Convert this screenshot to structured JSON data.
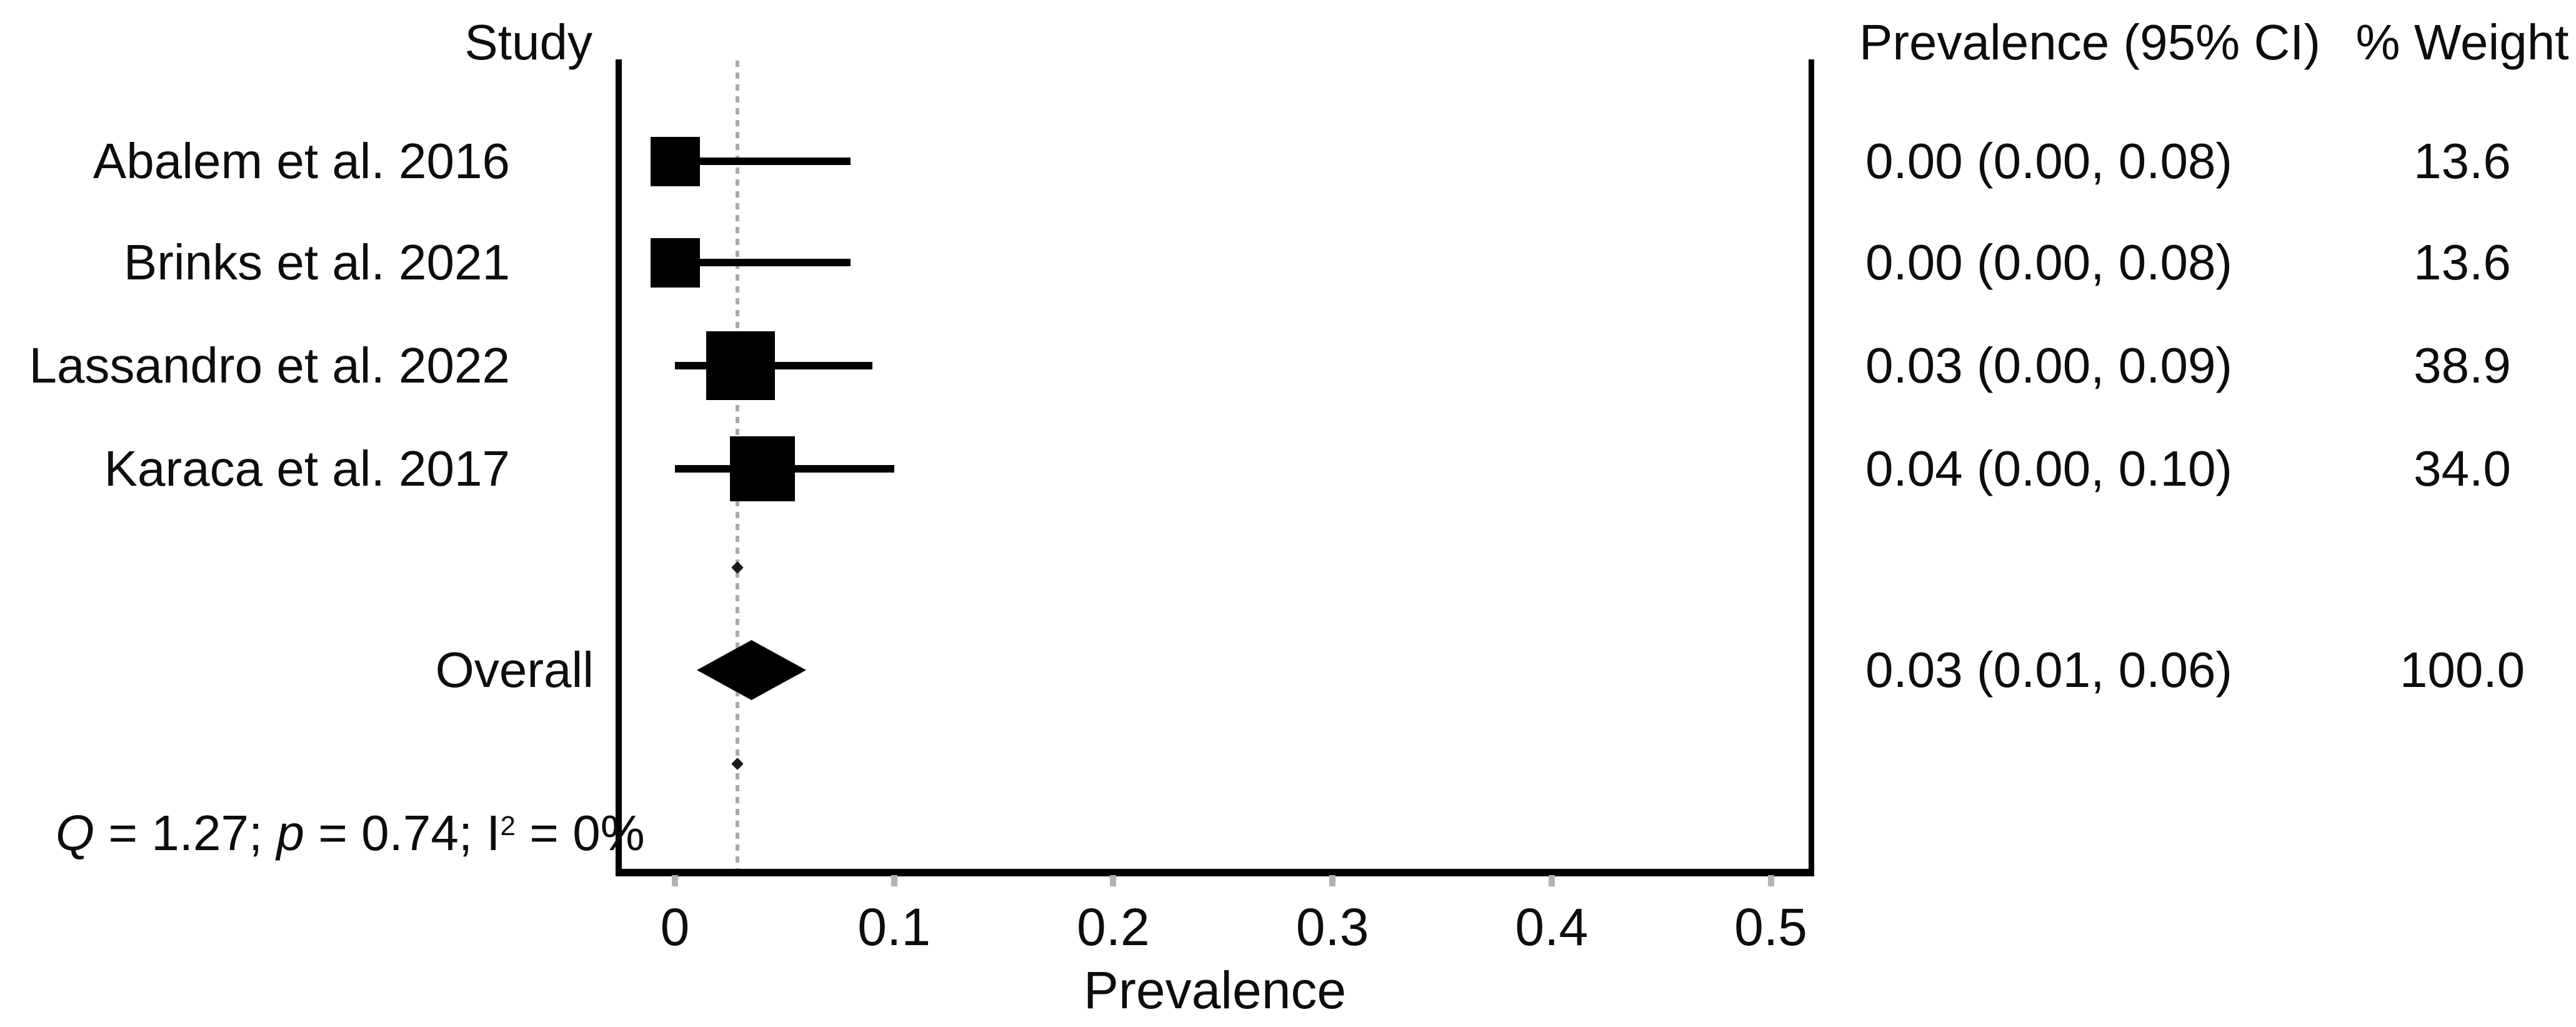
{
  "figure": {
    "study_column_header": "Study",
    "ci_column_header": "Prevalence (95% CI)",
    "weight_column_header": "% Weight",
    "x_axis_label": "Prevalence",
    "x_tick_labels": [
      "0",
      "0.1",
      "0.2",
      "0.3",
      "0.4",
      "0.5"
    ],
    "heterogeneity": {
      "full_text": "Q = 1.27; p = 0.74; I² = 0%",
      "q_symbol": "Q",
      "q_value": " = 1.27; ",
      "p_symbol": "p",
      "p_value": " = 0.74; ",
      "i_symbol": "I",
      "i_superscript": "2",
      "i_value": " = 0%"
    },
    "colors": {
      "marker": "#000000",
      "axis": "#000000",
      "reference_line": "#aaaaaa",
      "tick": "#b3b3b3",
      "text": "#0d0d0d",
      "background": "#ffffff"
    }
  },
  "chart_data": {
    "type": "forest",
    "title": "",
    "xlabel": "Prevalence",
    "xlim": [
      0,
      0.5
    ],
    "x_ticks": [
      0,
      0.1,
      0.2,
      0.3,
      0.4,
      0.5
    ],
    "grid": false,
    "reference_line_x": 0.03,
    "columns": [
      "Study",
      "Prevalence (95% CI)",
      "% Weight"
    ],
    "studies": [
      {
        "label": "Abalem et al. 2016",
        "prevalence": 0.0,
        "ci_lower": 0.0,
        "ci_upper": 0.08,
        "ci_text": "0.00 (0.00, 0.08)",
        "weight": 13.6,
        "weight_text": "13.6"
      },
      {
        "label": "Brinks et al. 2021",
        "prevalence": 0.0,
        "ci_lower": 0.0,
        "ci_upper": 0.08,
        "ci_text": "0.00 (0.00, 0.08)",
        "weight": 13.6,
        "weight_text": "13.6"
      },
      {
        "label": "Lassandro et al. 2022",
        "prevalence": 0.03,
        "ci_lower": 0.0,
        "ci_upper": 0.09,
        "ci_text": "0.03 (0.00, 0.09)",
        "weight": 38.9,
        "weight_text": "38.9"
      },
      {
        "label": "Karaca et al. 2017",
        "prevalence": 0.04,
        "ci_lower": 0.0,
        "ci_upper": 0.1,
        "ci_text": "0.04 (0.00, 0.10)",
        "weight": 34.0,
        "weight_text": "34.0"
      }
    ],
    "overall": {
      "label": "Overall",
      "prevalence": 0.03,
      "ci_lower": 0.01,
      "ci_upper": 0.06,
      "ci_text": "0.03 (0.01, 0.06)",
      "weight": 100.0,
      "weight_text": "100.0"
    },
    "heterogeneity_text": "Q = 1.27; p = 0.74; I² = 0%"
  }
}
